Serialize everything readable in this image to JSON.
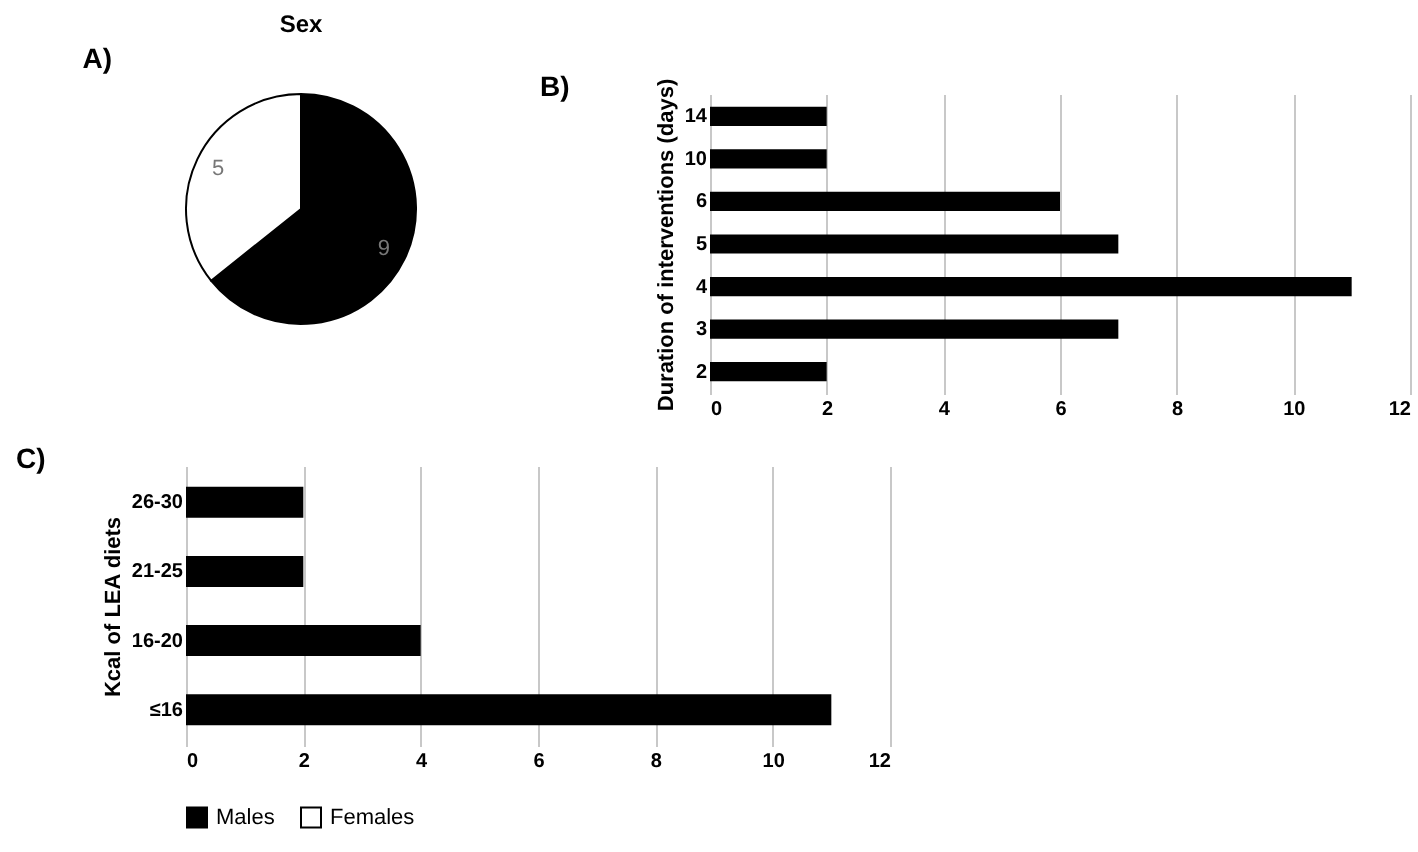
{
  "chart_data": [
    {
      "type": "pie",
      "title": "Sex",
      "annotations": [
        "A)"
      ],
      "categories": [
        "Males",
        "Females"
      ],
      "values": [
        9,
        5
      ],
      "colors": [
        "#000000",
        "#ffffff"
      ],
      "data_labels": true,
      "legend": "bottom"
    },
    {
      "type": "bar",
      "orientation": "horizontal",
      "annotations": [
        "B)"
      ],
      "ylabel": "Duration of interventions (days)",
      "categories": [
        "14",
        "10",
        "6",
        "5",
        "4",
        "3",
        "2"
      ],
      "values": [
        2,
        2,
        6,
        7,
        11,
        7,
        2
      ],
      "color": "#000000",
      "xlim": [
        0,
        12
      ],
      "xticks": [
        0,
        2,
        4,
        6,
        8,
        10,
        12
      ],
      "grid": "x"
    },
    {
      "type": "bar",
      "orientation": "horizontal",
      "annotations": [
        "C)"
      ],
      "ylabel": "Kcal of LEA diets",
      "categories": [
        "26-30",
        "21-25",
        "16-20",
        "≤16"
      ],
      "values": [
        2,
        2,
        4,
        11
      ],
      "color": "#000000",
      "xlim": [
        0,
        12
      ],
      "xticks": [
        0,
        2,
        4,
        6,
        8,
        10,
        12
      ],
      "grid": "x"
    }
  ]
}
